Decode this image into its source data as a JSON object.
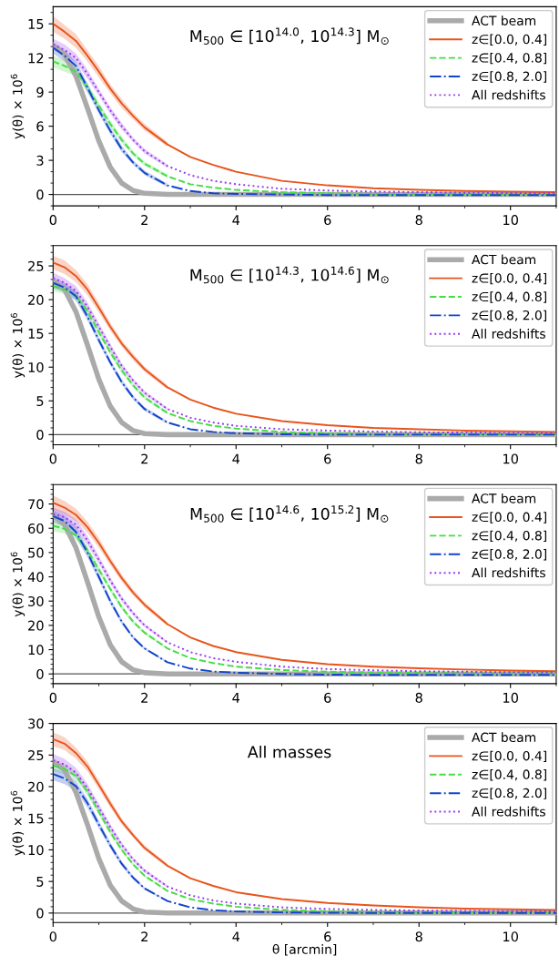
{
  "chart_data": [
    {
      "type": "line",
      "xlabel": null,
      "ylabel": "y(θ) × 10$^{6}$",
      "annotations": [
        "M$_{500}$ ∈ [10$^{14.0}$, 10$^{14.3}$] M$_{⊙}$"
      ],
      "x": [
        0,
        0.25,
        0.5,
        0.75,
        1,
        1.25,
        1.5,
        1.75,
        2,
        2.5,
        3,
        3.5,
        4,
        5,
        6,
        7,
        8,
        9,
        10,
        11
      ],
      "xlim": [
        0,
        11
      ],
      "xticks": [
        0,
        2,
        4,
        6,
        8,
        10
      ],
      "ylim": [
        -1.0,
        16.5
      ],
      "yticks": [
        0,
        3,
        6,
        9,
        12,
        15
      ],
      "legend": "top right",
      "grid": false,
      "marker": "none",
      "ref_lines": [
        {
          "axis": "y",
          "value": 0,
          "label": null,
          "color": "#555555"
        }
      ],
      "series": [
        {
          "name": "ACT beam",
          "color": "#aaaaaa",
          "line_style": "solid",
          "values": [
            13.1,
            12.3,
            10.4,
            7.6,
            4.7,
            2.4,
            1.0,
            0.35,
            0.1,
            0,
            0,
            0,
            0,
            0,
            0,
            0,
            0,
            0,
            0,
            0
          ]
        },
        {
          "name": "z∈[0.0, 0.4]",
          "color": "#e8541c",
          "line_style": "solid",
          "values": [
            15,
            14.3,
            13.5,
            12.2,
            10.8,
            9.3,
            8.0,
            6.9,
            5.9,
            4.4,
            3.3,
            2.6,
            2.0,
            1.2,
            0.8,
            0.55,
            0.4,
            0.3,
            0.25,
            0.2
          ],
          "lower": [
            14.3,
            13.7,
            12.9,
            11.7,
            10.3,
            8.9,
            7.6,
            6.6,
            5.6,
            4.2,
            null,
            null,
            null,
            null,
            null,
            null,
            null,
            null,
            null,
            null
          ],
          "upper": [
            15.7,
            14.9,
            14.1,
            12.7,
            11.3,
            9.7,
            8.4,
            7.2,
            6.2,
            4.6,
            null,
            null,
            null,
            null,
            null,
            null,
            null,
            null,
            null,
            null
          ]
        },
        {
          "name": "z∈[0.4, 0.8]",
          "color": "#44dd44",
          "line_style": "dashed",
          "values": [
            11.7,
            11.3,
            10.8,
            9.4,
            7.8,
            6.2,
            4.8,
            3.6,
            2.7,
            1.6,
            0.9,
            0.6,
            0.4,
            0.2,
            0.1,
            0.05,
            0.03,
            0.02,
            0.02,
            0.02
          ],
          "lower": [
            11.2,
            10.8,
            10.4,
            9.0,
            7.5,
            5.9,
            4.5,
            3.4,
            2.5,
            1.45,
            null,
            null,
            null,
            null,
            null,
            null,
            null,
            null,
            null,
            null
          ],
          "upper": [
            12.2,
            11.8,
            11.2,
            9.8,
            8.1,
            6.5,
            5.1,
            3.8,
            2.9,
            1.75,
            null,
            null,
            null,
            null,
            null,
            null,
            null,
            null,
            null,
            null
          ]
        },
        {
          "name": "z∈[0.8, 2.0]",
          "color": "#1144cc",
          "line_style": "dashdot",
          "values": [
            12.9,
            12.2,
            11.3,
            9.4,
            7.4,
            5.6,
            4.0,
            2.8,
            1.9,
            0.8,
            0.3,
            0.1,
            0.05,
            0,
            -0.05,
            -0.05,
            -0.05,
            -0.05,
            -0.05,
            -0.05
          ],
          "lower": [
            12.4,
            11.7,
            10.9,
            9.0,
            7.1,
            5.3,
            3.7,
            2.6,
            1.7,
            0.65,
            null,
            null,
            null,
            null,
            null,
            null,
            null,
            null,
            null,
            null
          ],
          "upper": [
            13.4,
            12.7,
            11.7,
            9.8,
            7.7,
            5.9,
            4.3,
            3.0,
            2.1,
            0.95,
            null,
            null,
            null,
            null,
            null,
            null,
            null,
            null,
            null,
            null
          ]
        },
        {
          "name": "All redshifts",
          "color": "#9933ee",
          "line_style": "dotted",
          "values": [
            13.2,
            12.7,
            12.0,
            10.6,
            9.0,
            7.4,
            6.0,
            4.8,
            3.8,
            2.5,
            1.7,
            1.2,
            0.9,
            0.5,
            0.35,
            0.25,
            0.2,
            0.15,
            0.12,
            0.1
          ],
          "lower": [
            12.7,
            12.2,
            11.6,
            10.2,
            8.7,
            7.1,
            5.7,
            4.6,
            3.6,
            2.35,
            null,
            null,
            null,
            null,
            null,
            null,
            null,
            null,
            null,
            null
          ],
          "upper": [
            13.7,
            13.2,
            12.4,
            11.0,
            9.3,
            7.7,
            6.3,
            5.0,
            4.0,
            2.65,
            null,
            null,
            null,
            null,
            null,
            null,
            null,
            null,
            null,
            null
          ]
        }
      ]
    },
    {
      "type": "line",
      "xlabel": null,
      "ylabel": "y(θ) × 10$^{6}$",
      "annotations": [
        "M$_{500}$ ∈ [10$^{14.3}$, 10$^{14.6}$] M$_{⊙}$"
      ],
      "x": [
        0,
        0.25,
        0.5,
        0.75,
        1,
        1.25,
        1.5,
        1.75,
        2,
        2.5,
        3,
        3.5,
        4,
        5,
        6,
        7,
        8,
        9,
        10,
        11
      ],
      "xlim": [
        0,
        11
      ],
      "xticks": [
        0,
        2,
        4,
        6,
        8,
        10
      ],
      "ylim": [
        -1.5,
        28
      ],
      "yticks": [
        0,
        5,
        10,
        15,
        20,
        25
      ],
      "legend": "top right",
      "grid": false,
      "marker": "none",
      "ref_lines": [
        {
          "axis": "y",
          "value": 0,
          "label": null,
          "color": "#555555"
        }
      ],
      "series": [
        {
          "name": "ACT beam",
          "color": "#aaaaaa",
          "line_style": "solid",
          "values": [
            22.8,
            21.5,
            18.2,
            13.3,
            8.2,
            4.2,
            1.8,
            0.6,
            0.15,
            0,
            0,
            0,
            0,
            0,
            0,
            0,
            0,
            0,
            0,
            0
          ]
        },
        {
          "name": "z∈[0.0, 0.4]",
          "color": "#e8541c",
          "line_style": "solid",
          "values": [
            25.5,
            24.8,
            23.5,
            21.5,
            18.8,
            16.0,
            13.5,
            11.5,
            9.7,
            7.0,
            5.2,
            4.0,
            3.1,
            2.0,
            1.4,
            1.0,
            0.8,
            0.6,
            0.5,
            0.4
          ],
          "lower": [
            24.5,
            23.8,
            22.6,
            20.7,
            18.1,
            15.4,
            13.0,
            11.0,
            9.3,
            6.7,
            null,
            null,
            null,
            null,
            null,
            null,
            null,
            null,
            null,
            null
          ],
          "upper": [
            26.5,
            25.8,
            24.4,
            22.3,
            19.5,
            16.6,
            14.0,
            12.0,
            10.1,
            7.3,
            null,
            null,
            null,
            null,
            null,
            null,
            null,
            null,
            null,
            null
          ]
        },
        {
          "name": "z∈[0.4, 0.8]",
          "color": "#44dd44",
          "line_style": "dashed",
          "values": [
            22.0,
            21.5,
            20.6,
            18.3,
            15.2,
            12.2,
            9.5,
            7.3,
            5.5,
            3.2,
            2.0,
            1.3,
            0.9,
            0.4,
            0.2,
            0.1,
            0.1,
            0.05,
            0.05,
            0.05
          ],
          "lower": [
            21.3,
            20.8,
            20.0,
            17.7,
            14.7,
            11.8,
            9.1,
            7.0,
            5.2,
            3.0,
            null,
            null,
            null,
            null,
            null,
            null,
            null,
            null,
            null,
            null
          ],
          "upper": [
            22.7,
            22.2,
            21.2,
            18.9,
            15.7,
            12.6,
            9.9,
            7.6,
            5.8,
            3.4,
            null,
            null,
            null,
            null,
            null,
            null,
            null,
            null,
            null,
            null
          ]
        },
        {
          "name": "z∈[0.8, 2.0]",
          "color": "#1144cc",
          "line_style": "dashdot",
          "values": [
            22.5,
            21.8,
            20.5,
            17.5,
            14.0,
            10.7,
            7.8,
            5.5,
            3.8,
            1.8,
            0.8,
            0.4,
            0.2,
            0.05,
            0,
            0,
            0,
            0,
            0,
            0
          ],
          "lower": [
            21.7,
            21.1,
            19.8,
            16.9,
            13.5,
            10.3,
            7.4,
            5.2,
            3.5,
            1.6,
            null,
            null,
            null,
            null,
            null,
            null,
            null,
            null,
            null,
            null
          ],
          "upper": [
            23.3,
            22.5,
            21.2,
            18.1,
            14.5,
            11.1,
            8.2,
            5.8,
            4.1,
            2.0,
            null,
            null,
            null,
            null,
            null,
            null,
            null,
            null,
            null,
            null
          ]
        },
        {
          "name": "All redshifts",
          "color": "#9933ee",
          "line_style": "dotted",
          "values": [
            23.2,
            22.5,
            21.3,
            19.0,
            16.0,
            13.0,
            10.2,
            8.0,
            6.2,
            3.8,
            2.5,
            1.8,
            1.3,
            0.8,
            0.6,
            0.45,
            0.35,
            0.3,
            0.25,
            0.2
          ],
          "lower": [
            22.4,
            21.8,
            20.6,
            18.4,
            15.5,
            12.5,
            9.8,
            7.7,
            5.9,
            3.6,
            null,
            null,
            null,
            null,
            null,
            null,
            null,
            null,
            null,
            null
          ],
          "upper": [
            24.0,
            23.2,
            22.0,
            19.6,
            16.5,
            13.5,
            10.6,
            8.3,
            6.5,
            4.0,
            null,
            null,
            null,
            null,
            null,
            null,
            null,
            null,
            null,
            null
          ]
        }
      ]
    },
    {
      "type": "line",
      "xlabel": null,
      "ylabel": "y(θ) × 10$^{6}$",
      "annotations": [
        "M$_{500}$ ∈ [10$^{14.6}$, 10$^{15.2}$] M$_{⊙}$"
      ],
      "x": [
        0,
        0.25,
        0.5,
        0.75,
        1,
        1.25,
        1.5,
        1.75,
        2,
        2.5,
        3,
        3.5,
        4,
        5,
        6,
        7,
        8,
        9,
        10,
        11
      ],
      "xlim": [
        0,
        11
      ],
      "xticks": [
        0,
        2,
        4,
        6,
        8,
        10
      ],
      "ylim": [
        -4,
        78
      ],
      "yticks": [
        0,
        10,
        20,
        30,
        40,
        50,
        60,
        70
      ],
      "legend": "top right",
      "grid": false,
      "marker": "none",
      "ref_lines": [
        {
          "axis": "y",
          "value": 0,
          "label": null,
          "color": "#555555"
        }
      ],
      "series": [
        {
          "name": "ACT beam",
          "color": "#aaaaaa",
          "line_style": "solid",
          "values": [
            65.5,
            61.5,
            52,
            38,
            23.5,
            12,
            5,
            1.7,
            0.5,
            0,
            0,
            0,
            0,
            0,
            0,
            0,
            0,
            0,
            0,
            0
          ]
        },
        {
          "name": "z∈[0.0, 0.4]",
          "color": "#e8541c",
          "line_style": "solid",
          "values": [
            70.5,
            68.5,
            65.5,
            60.5,
            54,
            46.5,
            39.5,
            33.5,
            28.5,
            20.5,
            15,
            11.5,
            9,
            5.8,
            4,
            3,
            2.3,
            1.8,
            1.4,
            1.1
          ],
          "lower": [
            67.5,
            65.8,
            63,
            58.2,
            52,
            44.8,
            38,
            32.2,
            27.4,
            19.7,
            null,
            null,
            null,
            null,
            null,
            null,
            null,
            null,
            null,
            null
          ],
          "upper": [
            73.5,
            71.2,
            68,
            62.8,
            56,
            48.2,
            41,
            34.8,
            29.6,
            21.3,
            null,
            null,
            null,
            null,
            null,
            null,
            null,
            null,
            null,
            null
          ]
        },
        {
          "name": "z∈[0.4, 0.8]",
          "color": "#44dd44",
          "line_style": "dashed",
          "values": [
            61,
            59.8,
            57,
            51,
            43,
            35,
            27.5,
            21.5,
            17,
            10.5,
            6.5,
            4.5,
            3,
            1.6,
            0.9,
            0.6,
            0.4,
            0.3,
            0.25,
            0.2
          ],
          "lower": [
            58.8,
            57.8,
            55.2,
            49.4,
            41.6,
            33.8,
            26.5,
            20.7,
            16.3,
            10,
            null,
            null,
            null,
            null,
            null,
            null,
            null,
            null,
            null,
            null
          ],
          "upper": [
            63.2,
            61.8,
            58.8,
            52.6,
            44.4,
            36.2,
            28.5,
            22.3,
            17.7,
            11,
            null,
            null,
            null,
            null,
            null,
            null,
            null,
            null,
            null,
            null
          ]
        },
        {
          "name": "z∈[0.8, 2.0]",
          "color": "#1144cc",
          "line_style": "dashdot",
          "values": [
            65,
            63,
            58.5,
            50,
            40,
            30,
            21.5,
            15,
            10.5,
            4.8,
            2.2,
            1,
            0.5,
            0,
            -0.3,
            -0.4,
            -0.4,
            -0.4,
            -0.4,
            -0.4
          ],
          "lower": [
            62.5,
            60.6,
            56.3,
            48.1,
            38.5,
            28.8,
            20.6,
            14.3,
            10,
            4.5,
            null,
            null,
            null,
            null,
            null,
            null,
            null,
            null,
            null,
            null
          ],
          "upper": [
            67.5,
            65.4,
            60.7,
            51.9,
            41.5,
            31.2,
            22.4,
            15.7,
            11,
            5.1,
            null,
            null,
            null,
            null,
            null,
            null,
            null,
            null,
            null,
            null
          ]
        },
        {
          "name": "All redshifts",
          "color": "#9933ee",
          "line_style": "dotted",
          "values": [
            66,
            64.5,
            61.5,
            55,
            47,
            38.5,
            31,
            25,
            20,
            13,
            9,
            6.5,
            5,
            3,
            2,
            1.5,
            1.1,
            0.9,
            0.7,
            0.6
          ],
          "lower": [
            63.5,
            62.2,
            59.4,
            53.1,
            45.4,
            37.2,
            29.9,
            24.1,
            19.3,
            12.5,
            null,
            null,
            null,
            null,
            null,
            null,
            null,
            null,
            null,
            null
          ],
          "upper": [
            68.5,
            66.8,
            63.6,
            56.9,
            48.6,
            39.8,
            32.1,
            25.9,
            20.7,
            13.5,
            null,
            null,
            null,
            null,
            null,
            null,
            null,
            null,
            null,
            null
          ]
        }
      ]
    },
    {
      "type": "line",
      "xlabel": "θ [arcmin]",
      "ylabel": "y(θ) × 10$^{6}$",
      "annotations": [
        "All masses"
      ],
      "x": [
        0,
        0.25,
        0.5,
        0.75,
        1,
        1.25,
        1.5,
        1.75,
        2,
        2.5,
        3,
        3.5,
        4,
        5,
        6,
        7,
        8,
        9,
        10,
        11
      ],
      "xlim": [
        0,
        11
      ],
      "xticks": [
        0,
        2,
        4,
        6,
        8,
        10
      ],
      "ylim": [
        -1.5,
        30
      ],
      "yticks": [
        0,
        5,
        10,
        15,
        20,
        25,
        30
      ],
      "legend": "top right",
      "grid": false,
      "marker": "none",
      "ref_lines": [
        {
          "axis": "y",
          "value": 0,
          "label": null,
          "color": "#555555"
        }
      ],
      "series": [
        {
          "name": "ACT beam",
          "color": "#aaaaaa",
          "line_style": "solid",
          "values": [
            24,
            22.6,
            19.1,
            14,
            8.6,
            4.4,
            1.9,
            0.65,
            0.16,
            0,
            0,
            0,
            0,
            0,
            0,
            0,
            0,
            0,
            0,
            0
          ]
        },
        {
          "name": "z∈[0.0, 0.4]",
          "color": "#e8541c",
          "line_style": "solid",
          "values": [
            27.5,
            26.8,
            25.3,
            23.2,
            20.3,
            17.3,
            14.5,
            12.3,
            10.3,
            7.5,
            5.5,
            4.3,
            3.3,
            2.2,
            1.6,
            1.2,
            0.9,
            0.7,
            0.6,
            0.5
          ],
          "lower": [
            26.4,
            25.8,
            24.4,
            22.4,
            19.6,
            16.7,
            14.0,
            11.9,
            9.9,
            7.2,
            null,
            null,
            null,
            null,
            null,
            null,
            null,
            null,
            null,
            null
          ],
          "upper": [
            28.6,
            27.8,
            26.2,
            24.0,
            21.0,
            17.9,
            15.0,
            12.7,
            10.7,
            7.8,
            null,
            null,
            null,
            null,
            null,
            null,
            null,
            null,
            null,
            null
          ]
        },
        {
          "name": "z∈[0.4, 0.8]",
          "color": "#44dd44",
          "line_style": "dashed",
          "values": [
            23.3,
            22.8,
            21.7,
            19.2,
            16.0,
            12.8,
            10.0,
            7.7,
            5.9,
            3.5,
            2.2,
            1.5,
            1.0,
            0.5,
            0.3,
            0.2,
            0.15,
            0.1,
            0.1,
            0.1
          ],
          "lower": [
            22.5,
            22.0,
            21.0,
            18.6,
            15.5,
            12.4,
            9.7,
            7.4,
            5.7,
            3.3,
            null,
            null,
            null,
            null,
            null,
            null,
            null,
            null,
            null,
            null
          ],
          "upper": [
            24.1,
            23.6,
            22.4,
            19.8,
            16.5,
            13.2,
            10.3,
            8.0,
            6.1,
            3.7,
            null,
            null,
            null,
            null,
            null,
            null,
            null,
            null,
            null,
            null
          ]
        },
        {
          "name": "z∈[0.8, 2.0]",
          "color": "#1144cc",
          "line_style": "dashdot",
          "values": [
            22,
            21.3,
            20.1,
            17.4,
            14.0,
            10.7,
            7.8,
            5.6,
            3.9,
            1.9,
            0.9,
            0.45,
            0.25,
            0.1,
            0.05,
            0,
            0,
            0,
            0,
            0
          ],
          "lower": [
            21.0,
            20.4,
            19.3,
            16.7,
            13.4,
            10.2,
            7.4,
            5.3,
            3.7,
            1.8,
            null,
            null,
            null,
            null,
            null,
            null,
            null,
            null,
            null,
            null
          ],
          "upper": [
            23.0,
            22.2,
            20.9,
            18.1,
            14.6,
            11.2,
            8.2,
            5.9,
            4.1,
            2.0,
            null,
            null,
            null,
            null,
            null,
            null,
            null,
            null,
            null,
            null
          ]
        },
        {
          "name": "All redshifts",
          "color": "#9933ee",
          "line_style": "dotted",
          "values": [
            24.2,
            23.5,
            22.2,
            19.8,
            16.7,
            13.6,
            10.8,
            8.5,
            6.7,
            4.2,
            2.8,
            2.0,
            1.5,
            0.9,
            0.65,
            0.5,
            0.4,
            0.35,
            0.3,
            0.25
          ],
          "lower": [
            23.2,
            22.6,
            21.4,
            19.1,
            16.1,
            13.1,
            10.4,
            8.2,
            6.4,
            4.0,
            null,
            null,
            null,
            null,
            null,
            null,
            null,
            null,
            null,
            null
          ],
          "upper": [
            25.2,
            24.4,
            23.0,
            20.5,
            17.3,
            14.1,
            11.2,
            8.8,
            7.0,
            4.4,
            null,
            null,
            null,
            null,
            null,
            null,
            null,
            null,
            null,
            null
          ]
        }
      ]
    }
  ]
}
